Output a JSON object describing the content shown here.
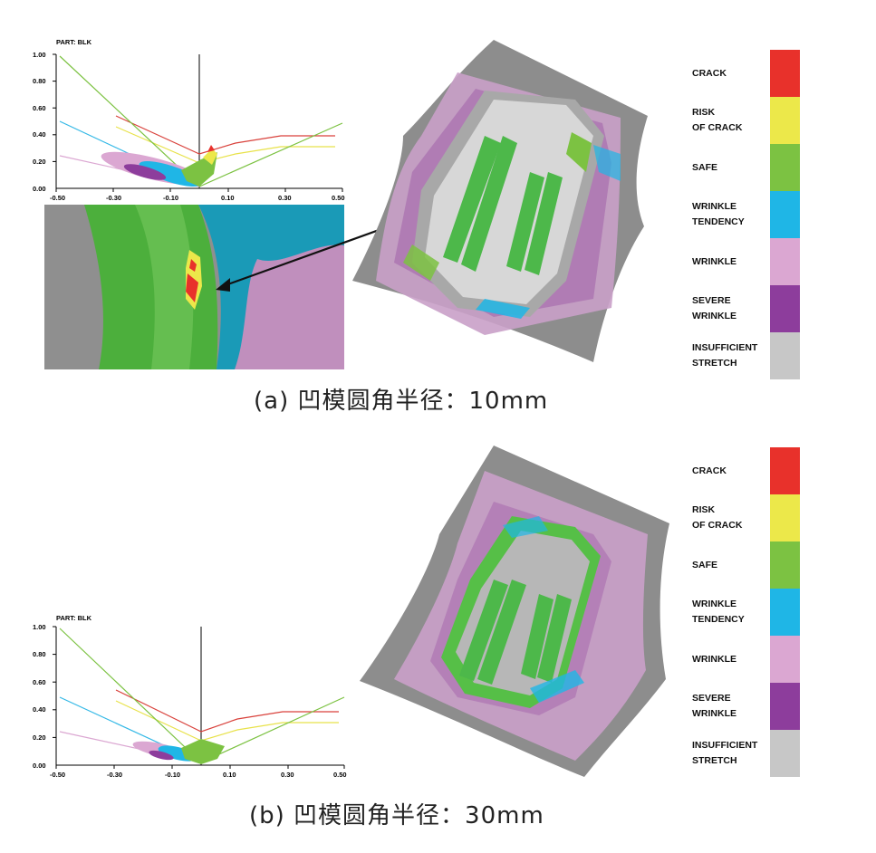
{
  "panels": [
    {
      "id": "a",
      "caption": "(a) 凹模圆角半径：10mm",
      "flc": {
        "part_label": "PART:  BLK",
        "y_ticks": [
          "1.00",
          "0.80",
          "0.60",
          "0.40",
          "0.20",
          "0.00"
        ],
        "x_ticks": [
          "-0.50",
          "-0.30",
          "-0.10",
          "0.10",
          "0.30",
          "0.50"
        ]
      }
    },
    {
      "id": "b",
      "caption": "(b) 凹模圆角半径：30mm",
      "flc": {
        "part_label": "PART:  BLK",
        "y_ticks": [
          "1.00",
          "0.80",
          "0.60",
          "0.40",
          "0.20",
          "0.00"
        ],
        "x_ticks": [
          "-0.50",
          "-0.30",
          "-0.10",
          "0.10",
          "0.30",
          "0.50"
        ]
      }
    }
  ],
  "legend": [
    {
      "label": "CRACK",
      "color": "#e8312b"
    },
    {
      "label": "RISK\nOF CRACK",
      "color": "#ece84a"
    },
    {
      "label": "SAFE",
      "color": "#7cc242"
    },
    {
      "label": "WRINKLE\nTENDENCY",
      "color": "#1fb6e6"
    },
    {
      "label": "WRINKLE",
      "color": "#dba7d2"
    },
    {
      "label": "SEVERE\nWRINKLE",
      "color": "#8d3d9c"
    },
    {
      "label": "INSUFFICIENT\nSTRETCH",
      "color": "#c7c7c7"
    }
  ],
  "flc_curves": {
    "crack": "#d9423c",
    "risk": "#e8e24a",
    "safe": "#7cc242",
    "tendency": "#33b8e6",
    "wrinkle": "#dba7d2"
  }
}
